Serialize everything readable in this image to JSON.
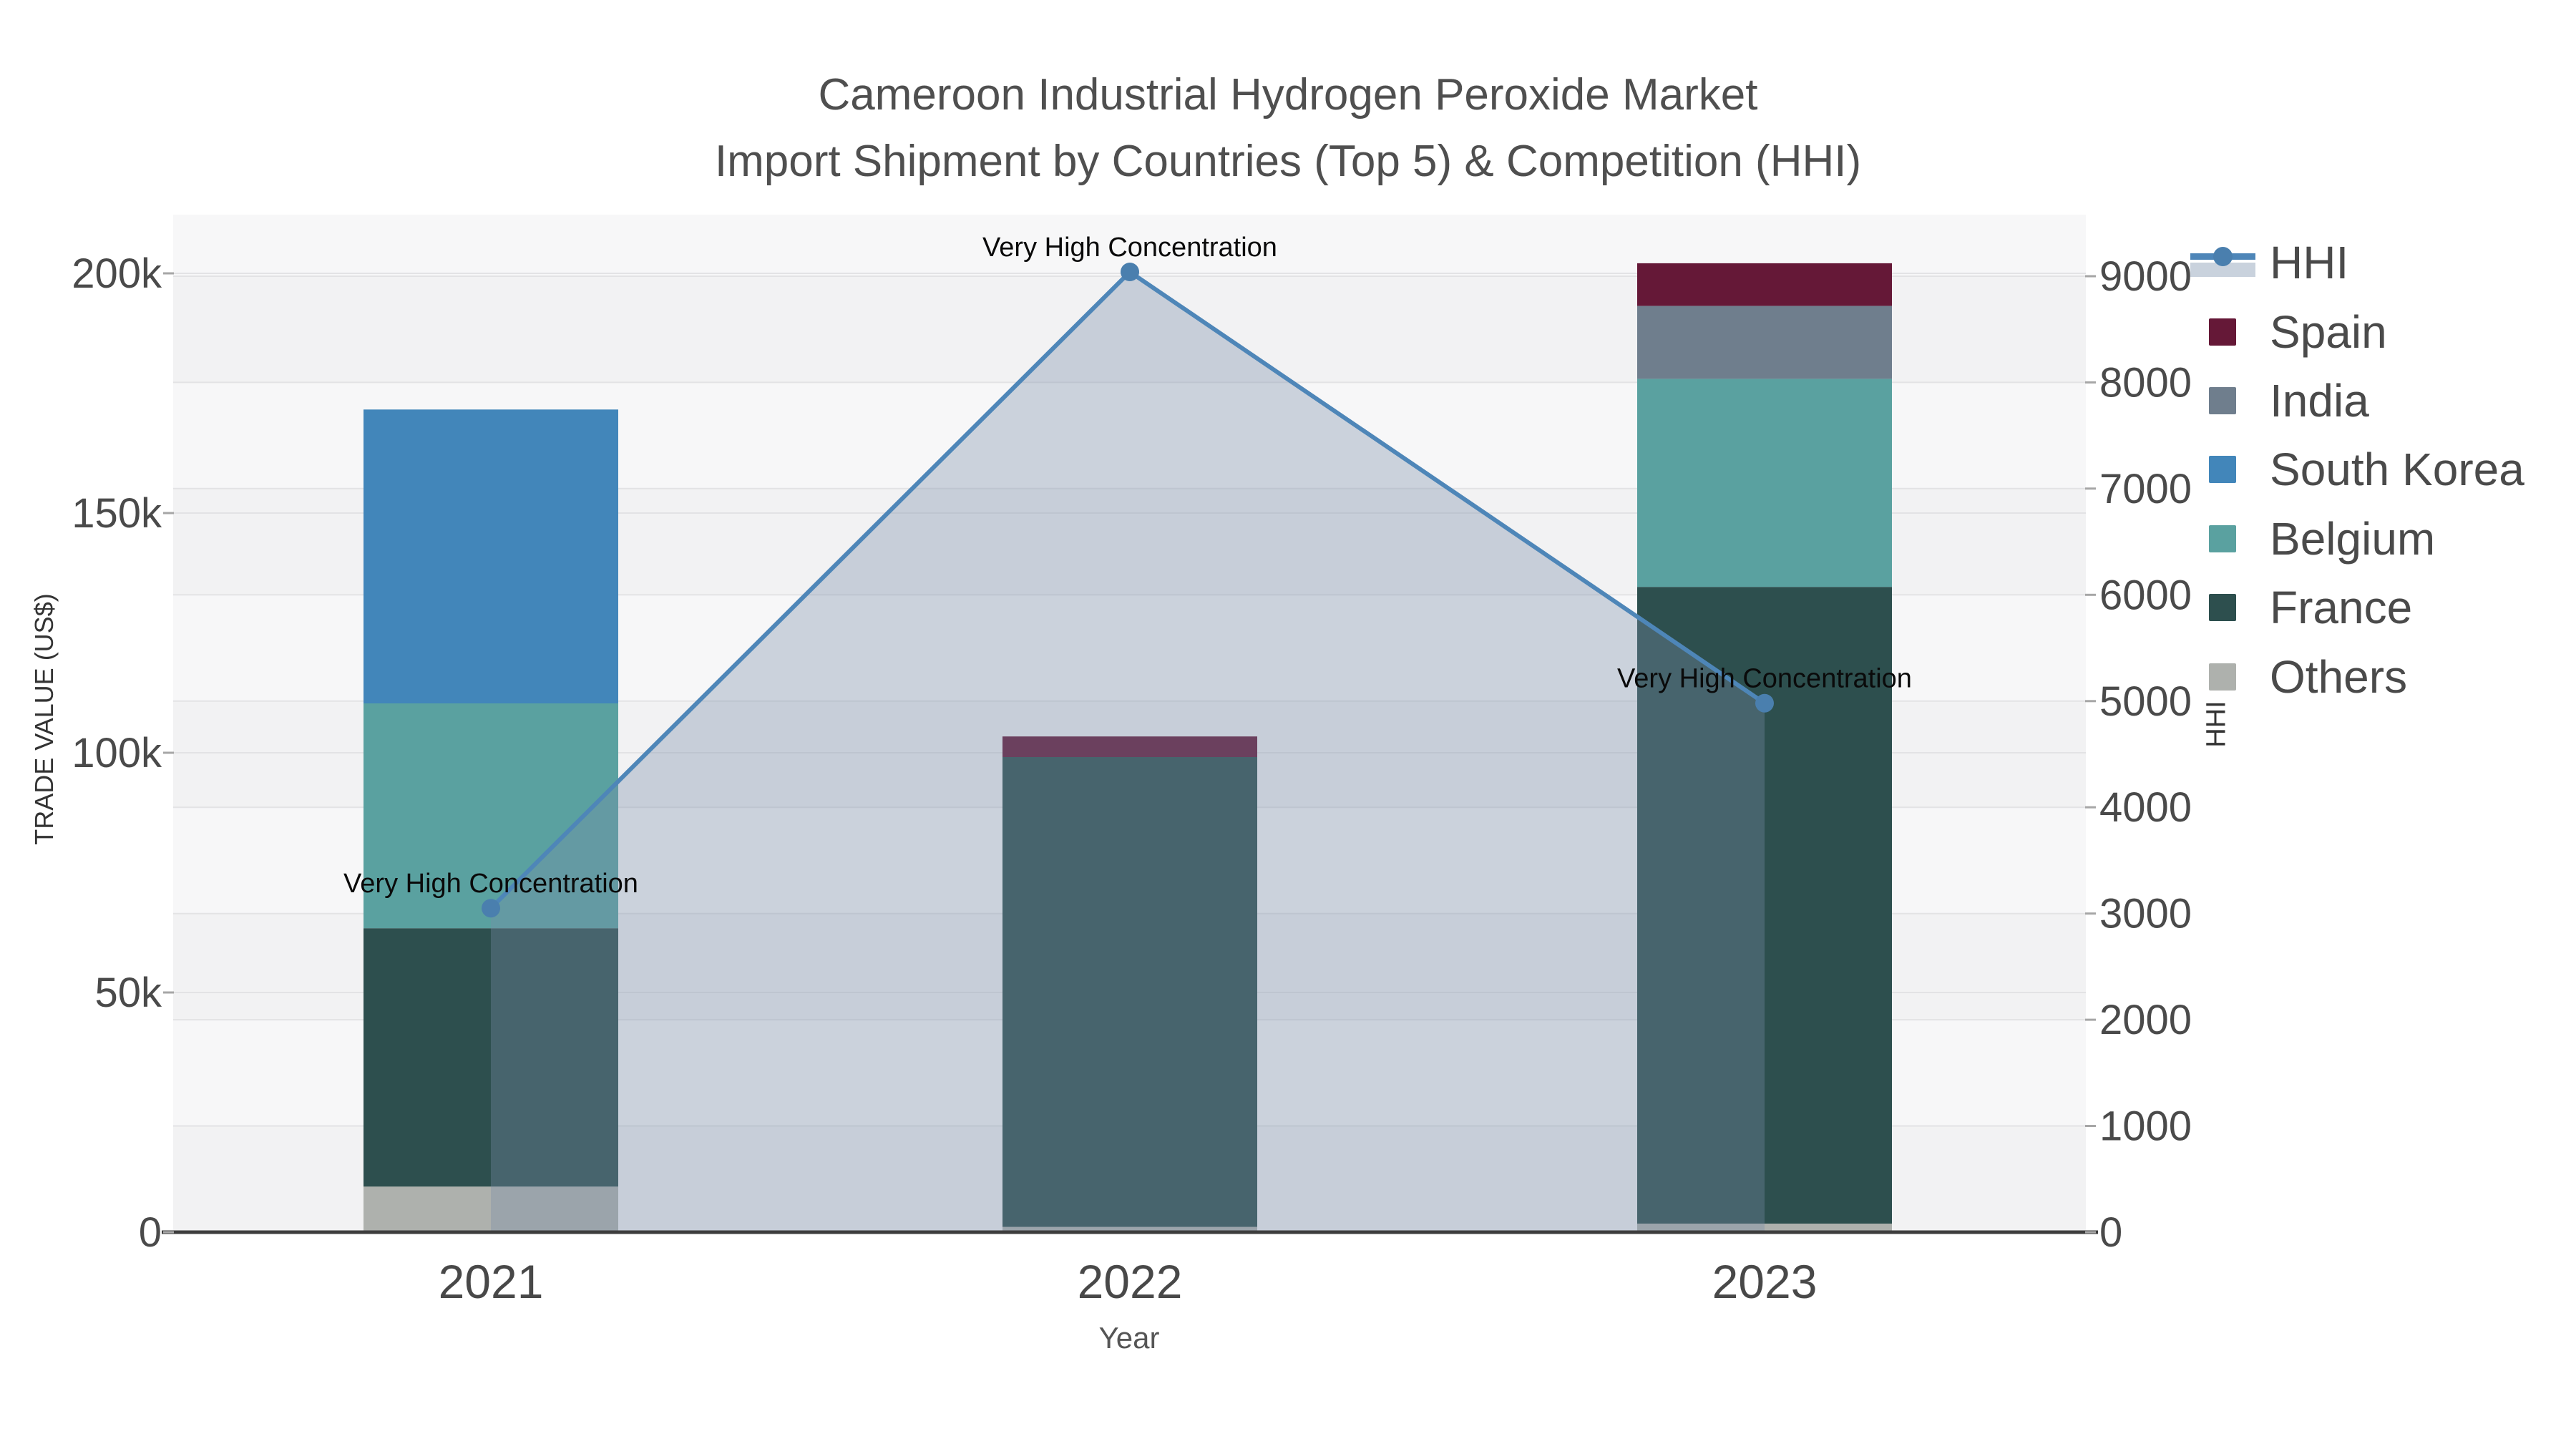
{
  "title": {
    "line1": "Cameroon Industrial Hydrogen Peroxide Market",
    "line2": "Import Shipment by Countries (Top 5) & Competition (HHI)"
  },
  "axes": {
    "left": {
      "title": "TRADE VALUE (US$)",
      "tick_labels": [
        "0",
        "50k",
        "100k",
        "150k",
        "200k"
      ],
      "tick_values": [
        0,
        50000,
        100000,
        150000,
        200000
      ]
    },
    "right": {
      "title": "HHI",
      "tick_labels": [
        "0",
        "1000",
        "2000",
        "3000",
        "4000",
        "5000",
        "6000",
        "7000",
        "8000",
        "9000"
      ],
      "tick_values": [
        0,
        1000,
        2000,
        3000,
        4000,
        5000,
        6000,
        7000,
        8000,
        9000
      ]
    },
    "x": {
      "title": "Year",
      "categories": [
        "2021",
        "2022",
        "2023"
      ]
    }
  },
  "legend": {
    "items": [
      {
        "label": "HHI",
        "type": "line",
        "color": "#4e86b8"
      },
      {
        "label": "Spain",
        "type": "bar",
        "color": "#651837"
      },
      {
        "label": "India",
        "type": "bar",
        "color": "#6f7e8d"
      },
      {
        "label": "South Korea",
        "type": "bar",
        "color": "#4286ba"
      },
      {
        "label": "Belgium",
        "type": "bar",
        "color": "#5aa1a0"
      },
      {
        "label": "France",
        "type": "bar",
        "color": "#2d4f4e"
      },
      {
        "label": "Others",
        "type": "bar",
        "color": "#aeb1ad"
      }
    ]
  },
  "chart_data": {
    "type": "combo",
    "subtype": "stacked-bar + line-area (dual axis)",
    "categories": [
      "2021",
      "2022",
      "2023"
    ],
    "bar_value_unit": "US$",
    "bar_stack_order_bottom_to_top": [
      "Others",
      "France",
      "Belgium",
      "South Korea",
      "India",
      "Spain"
    ],
    "bar_series": [
      {
        "name": "Others",
        "color": "#aeb1ad",
        "values": [
          9500,
          1100,
          1800
        ]
      },
      {
        "name": "France",
        "color": "#2d4f4e",
        "values": [
          53900,
          98000,
          132800
        ]
      },
      {
        "name": "Belgium",
        "color": "#5aa1a0",
        "values": [
          46900,
          0,
          43400
        ]
      },
      {
        "name": "South Korea",
        "color": "#4286ba",
        "values": [
          61300,
          0,
          0
        ]
      },
      {
        "name": "India",
        "color": "#6f7e8d",
        "values": [
          0,
          0,
          15200
        ]
      },
      {
        "name": "Spain",
        "color": "#651837",
        "values": [
          0,
          4300,
          8900
        ]
      }
    ],
    "bar_totals": [
      171600,
      103400,
      202100
    ],
    "line_series": {
      "name": "HHI",
      "axis": "right",
      "color": "#4e86b8",
      "dot_color": "#4a7fae",
      "area_fill": "rgba(120,140,170,0.35)",
      "values": [
        3050,
        9040,
        4980
      ]
    },
    "annotations": [
      {
        "text": "Very High Concentration",
        "category": "2021"
      },
      {
        "text": "Very High Concentration",
        "category": "2022"
      },
      {
        "text": "Very High Concentration",
        "category": "2023"
      }
    ],
    "left_axis_range": [
      0,
      212000
    ],
    "right_axis_range": [
      0,
      9580
    ],
    "grid": true,
    "legend_position": "right",
    "title": "Cameroon Industrial Hydrogen Peroxide Market Import Shipment by Countries (Top 5) & Competition (HHI)",
    "xlabel": "Year",
    "ylabel_left": "TRADE VALUE (US$)",
    "ylabel_right": "HHI"
  }
}
